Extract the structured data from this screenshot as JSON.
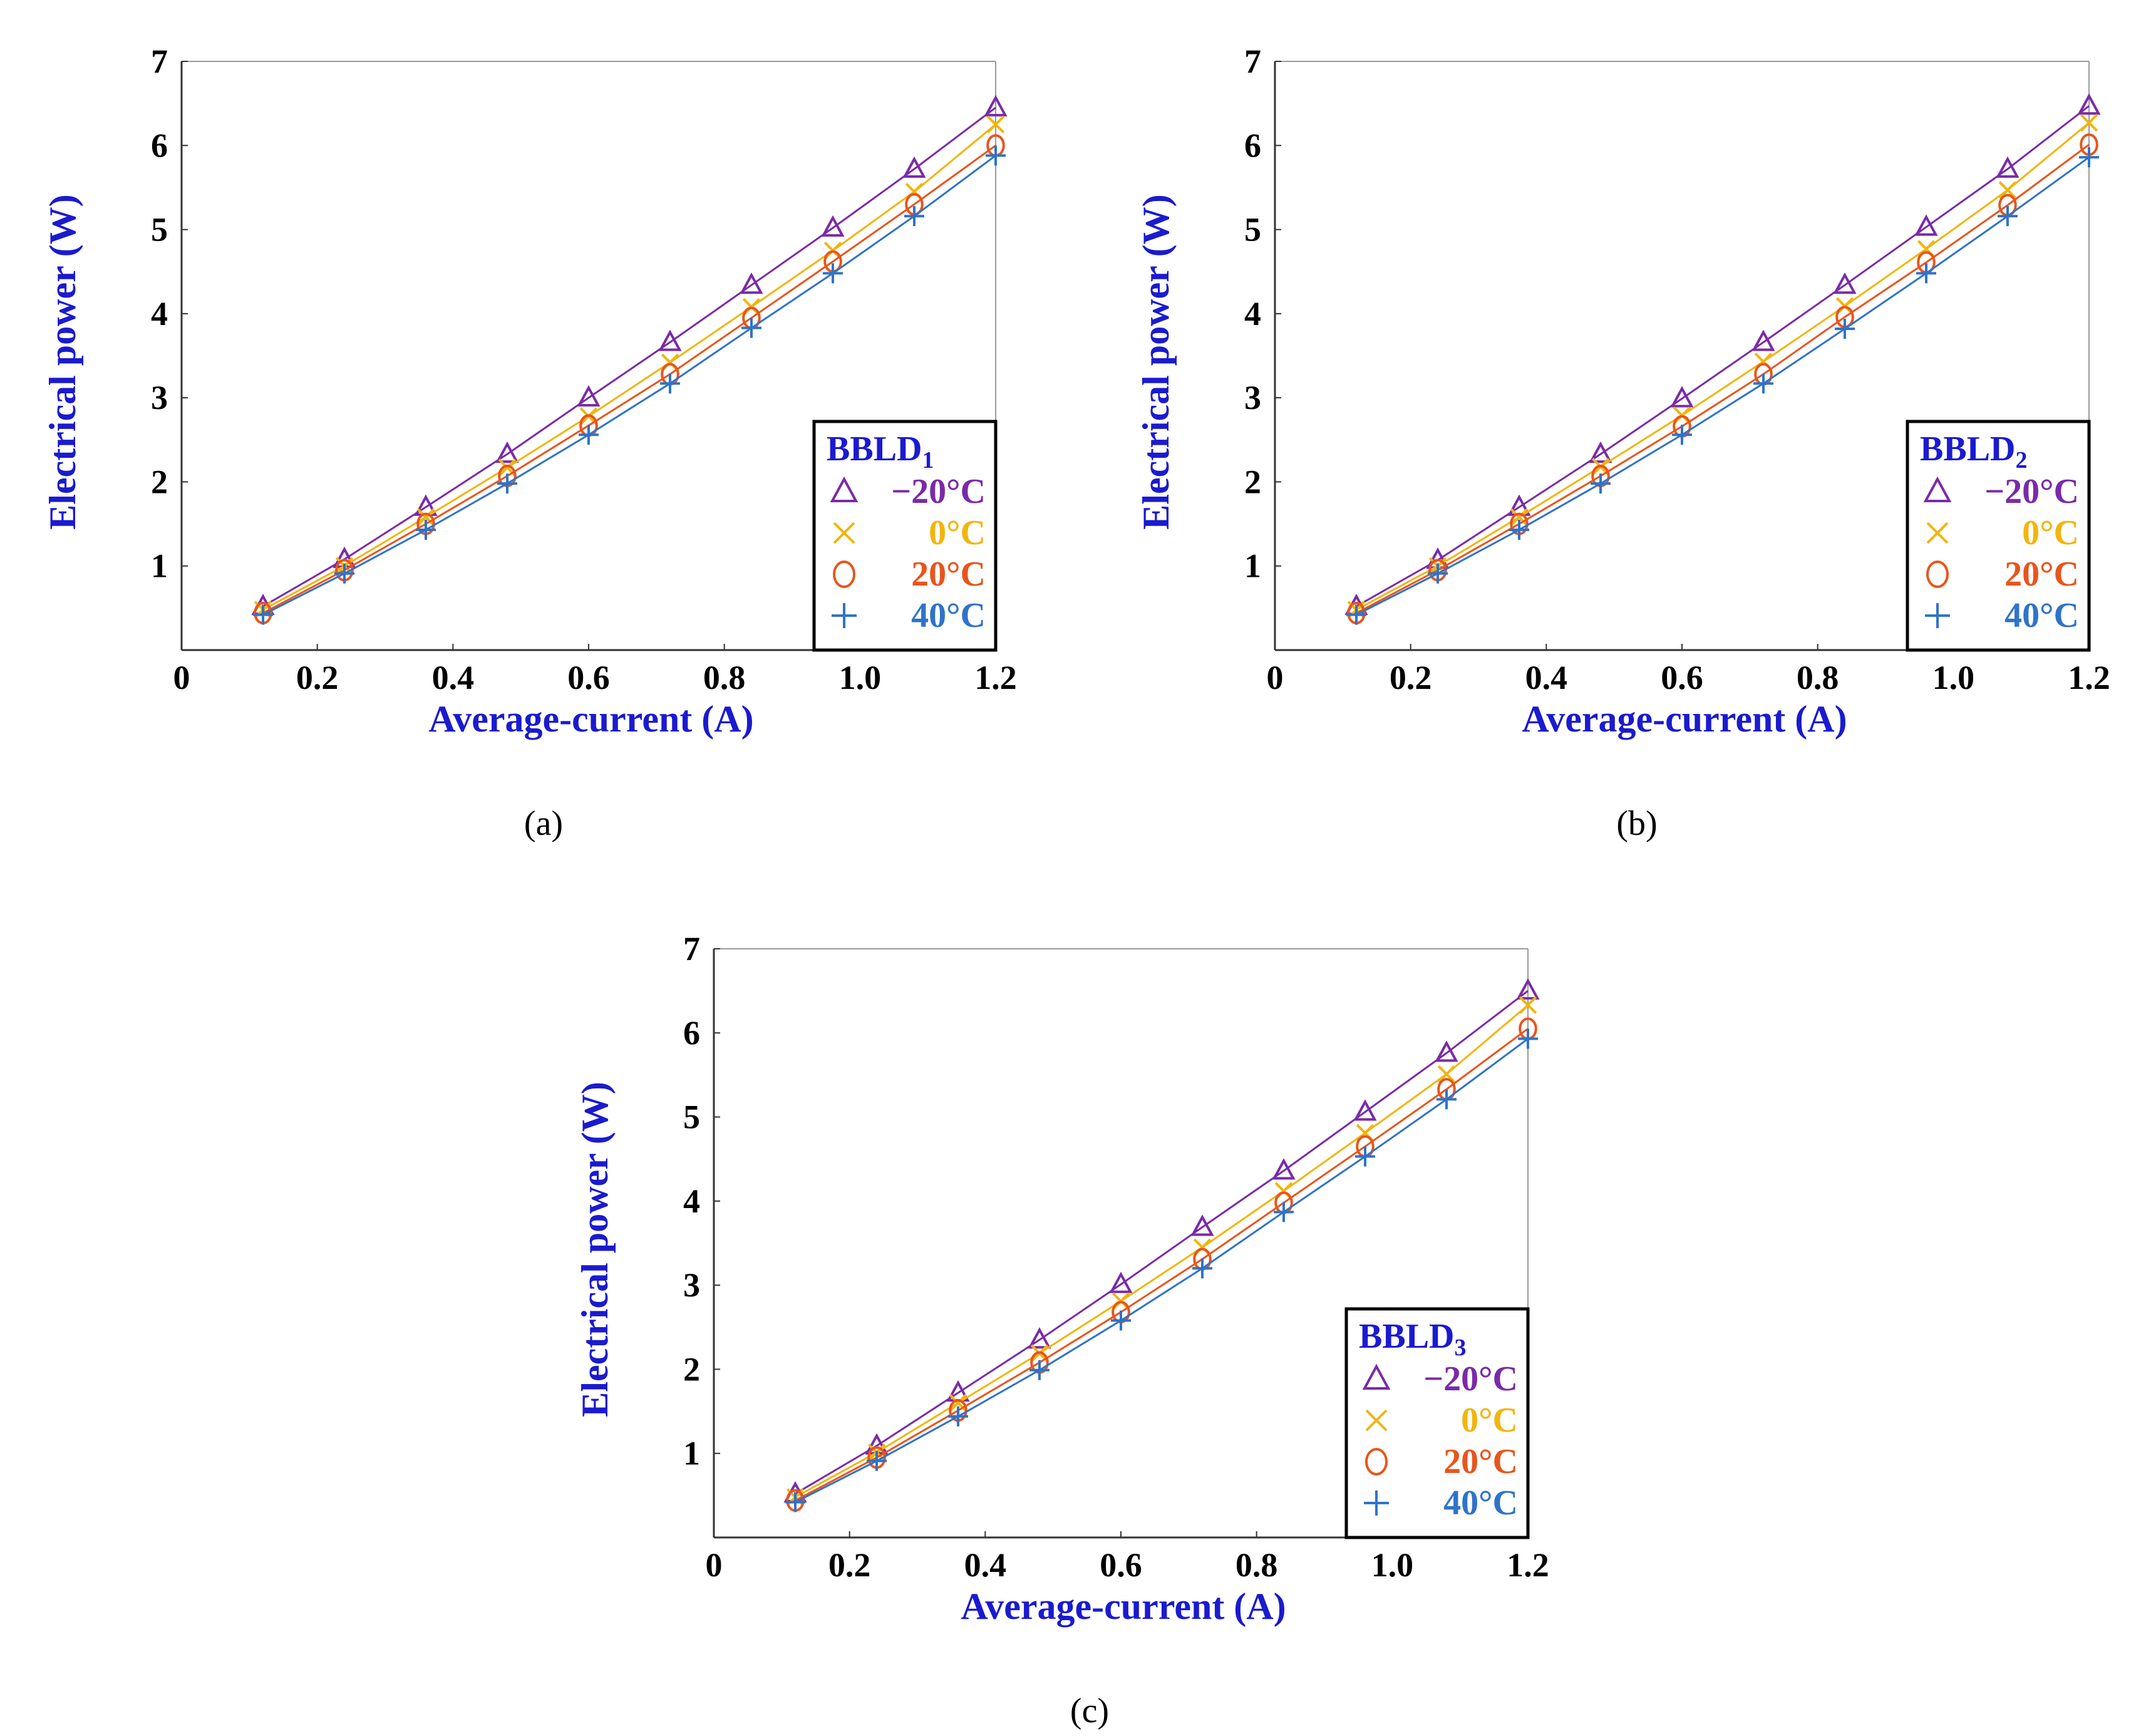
{
  "colors": {
    "axis_label": "#1a1ad0",
    "minus20": "#7a2aa8",
    "zero": "#f2b50c",
    "plus20": "#e8551c",
    "plus40": "#2f73c9"
  },
  "chart_data": [
    {
      "type": "line",
      "caption": "(a)",
      "legend_title": "BBLD",
      "legend_subscript": "1",
      "xlabel": "Average-current (A)",
      "ylabel": "Electrical power (W)",
      "xlim": [
        0,
        1.2
      ],
      "ylim": [
        0,
        7
      ],
      "xticks": [
        "0",
        "0.2",
        "0.4",
        "0.6",
        "0.8",
        "1.0",
        "1.2"
      ],
      "yticks": [
        "1",
        "2",
        "3",
        "4",
        "5",
        "6",
        "7"
      ],
      "legend_position": "bottom-right",
      "x": [
        0.12,
        0.24,
        0.36,
        0.48,
        0.6,
        0.72,
        0.84,
        0.96,
        1.08,
        1.2
      ],
      "series": [
        {
          "name": "−20°C",
          "marker": "triangle",
          "color": "#7a2aa8",
          "values": [
            0.52,
            1.08,
            1.7,
            2.33,
            3.0,
            3.66,
            4.34,
            5.02,
            5.72,
            6.45
          ]
        },
        {
          "name": "0°C",
          "marker": "x",
          "color": "#f2b50c",
          "values": [
            0.48,
            1.0,
            1.58,
            2.17,
            2.78,
            3.42,
            4.08,
            4.75,
            5.45,
            6.25
          ]
        },
        {
          "name": "20°C",
          "marker": "circle",
          "color": "#e8551c",
          "values": [
            0.44,
            0.95,
            1.5,
            2.07,
            2.67,
            3.28,
            3.95,
            4.62,
            5.3,
            6.0
          ]
        },
        {
          "name": "40°C",
          "marker": "plus",
          "color": "#2f73c9",
          "values": [
            0.42,
            0.91,
            1.43,
            1.98,
            2.56,
            3.17,
            3.83,
            4.48,
            5.16,
            5.88
          ]
        }
      ]
    },
    {
      "type": "line",
      "caption": "(b)",
      "legend_title": "BBLD",
      "legend_subscript": "2",
      "xlabel": "Average-current (A)",
      "ylabel": "Electrical power (W)",
      "xlim": [
        0,
        1.2
      ],
      "ylim": [
        0,
        7
      ],
      "xticks": [
        "0",
        "0.2",
        "0.4",
        "0.6",
        "0.8",
        "1.0",
        "1.2"
      ],
      "yticks": [
        "1",
        "2",
        "3",
        "4",
        "5",
        "6",
        "7"
      ],
      "legend_position": "bottom-right",
      "x": [
        0.12,
        0.24,
        0.36,
        0.48,
        0.6,
        0.72,
        0.84,
        0.96,
        1.08,
        1.2
      ],
      "series": [
        {
          "name": "−20°C",
          "marker": "triangle",
          "color": "#7a2aa8",
          "values": [
            0.52,
            1.07,
            1.7,
            2.33,
            2.99,
            3.66,
            4.34,
            5.03,
            5.72,
            6.47
          ]
        },
        {
          "name": "0°C",
          "marker": "x",
          "color": "#f2b50c",
          "values": [
            0.48,
            1.0,
            1.58,
            2.18,
            2.79,
            3.43,
            4.09,
            4.77,
            5.47,
            6.27
          ]
        },
        {
          "name": "20°C",
          "marker": "circle",
          "color": "#e8551c",
          "values": [
            0.44,
            0.95,
            1.5,
            2.07,
            2.66,
            3.28,
            3.96,
            4.61,
            5.29,
            6.01
          ]
        },
        {
          "name": "40°C",
          "marker": "plus",
          "color": "#2f73c9",
          "values": [
            0.42,
            0.91,
            1.43,
            1.98,
            2.56,
            3.17,
            3.82,
            4.48,
            5.16,
            5.86
          ]
        }
      ]
    },
    {
      "type": "line",
      "caption": "(c)",
      "legend_title": "BBLD",
      "legend_subscript": "3",
      "xlabel": "Average-current (A)",
      "ylabel": "Electrical power (W)",
      "xlim": [
        0,
        1.2
      ],
      "ylim": [
        0,
        7
      ],
      "xticks": [
        "0",
        "0.2",
        "0.4",
        "0.6",
        "0.8",
        "1.0",
        "1.2"
      ],
      "yticks": [
        "1",
        "2",
        "3",
        "4",
        "5",
        "6",
        "7"
      ],
      "legend_position": "bottom-right",
      "x": [
        0.12,
        0.24,
        0.36,
        0.48,
        0.6,
        0.72,
        0.84,
        0.96,
        1.08,
        1.2
      ],
      "series": [
        {
          "name": "−20°C",
          "marker": "triangle",
          "color": "#7a2aa8",
          "values": [
            0.52,
            1.09,
            1.72,
            2.35,
            3.01,
            3.69,
            4.36,
            5.06,
            5.76,
            6.5
          ]
        },
        {
          "name": "0°C",
          "marker": "x",
          "color": "#f2b50c",
          "values": [
            0.48,
            1.01,
            1.6,
            2.19,
            2.81,
            3.45,
            4.12,
            4.81,
            5.51,
            6.33
          ]
        },
        {
          "name": "20°C",
          "marker": "circle",
          "color": "#e8551c",
          "values": [
            0.44,
            0.95,
            1.51,
            2.08,
            2.68,
            3.31,
            3.98,
            4.65,
            5.33,
            6.05
          ]
        },
        {
          "name": "40°C",
          "marker": "plus",
          "color": "#2f73c9",
          "values": [
            0.42,
            0.91,
            1.44,
            1.99,
            2.58,
            3.2,
            3.87,
            4.53,
            5.21,
            5.93
          ]
        }
      ]
    }
  ]
}
